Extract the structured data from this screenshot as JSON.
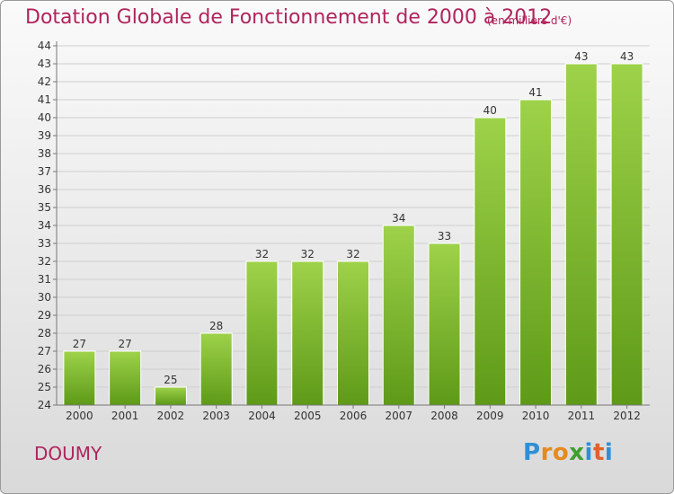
{
  "header": {
    "title": "Dotation Globale de Fonctionnement de 2000 à 2012",
    "unit": "(en milliers d'€)"
  },
  "footer": {
    "commune": "DOUMY",
    "logo_letters": [
      "P",
      "r",
      "o",
      "x",
      "i",
      "t",
      "i"
    ],
    "logo_colors": [
      "#2f8fd6",
      "#e58a1f",
      "#e58a1f",
      "#3f9f2f",
      "#2f8fd6",
      "#e0622a",
      "#2f8fd6"
    ]
  },
  "chart_data": {
    "type": "bar",
    "title": "Dotation Globale de Fonctionnement de 2000 à 2012",
    "xlabel": "",
    "ylabel": "",
    "categories": [
      "2000",
      "2001",
      "2002",
      "2003",
      "2004",
      "2005",
      "2006",
      "2007",
      "2008",
      "2009",
      "2010",
      "2011",
      "2012"
    ],
    "values": [
      27,
      27,
      25,
      28,
      32,
      32,
      32,
      34,
      33,
      40,
      41,
      43,
      43
    ],
    "ylim": [
      24,
      44
    ],
    "yticks": [
      24,
      25,
      26,
      27,
      28,
      29,
      30,
      31,
      32,
      33,
      34,
      35,
      36,
      37,
      38,
      39,
      40,
      41,
      42,
      43,
      44
    ],
    "grid": true,
    "bar_color_top": "#9ed24a",
    "bar_color_bottom": "#5e9a18"
  }
}
